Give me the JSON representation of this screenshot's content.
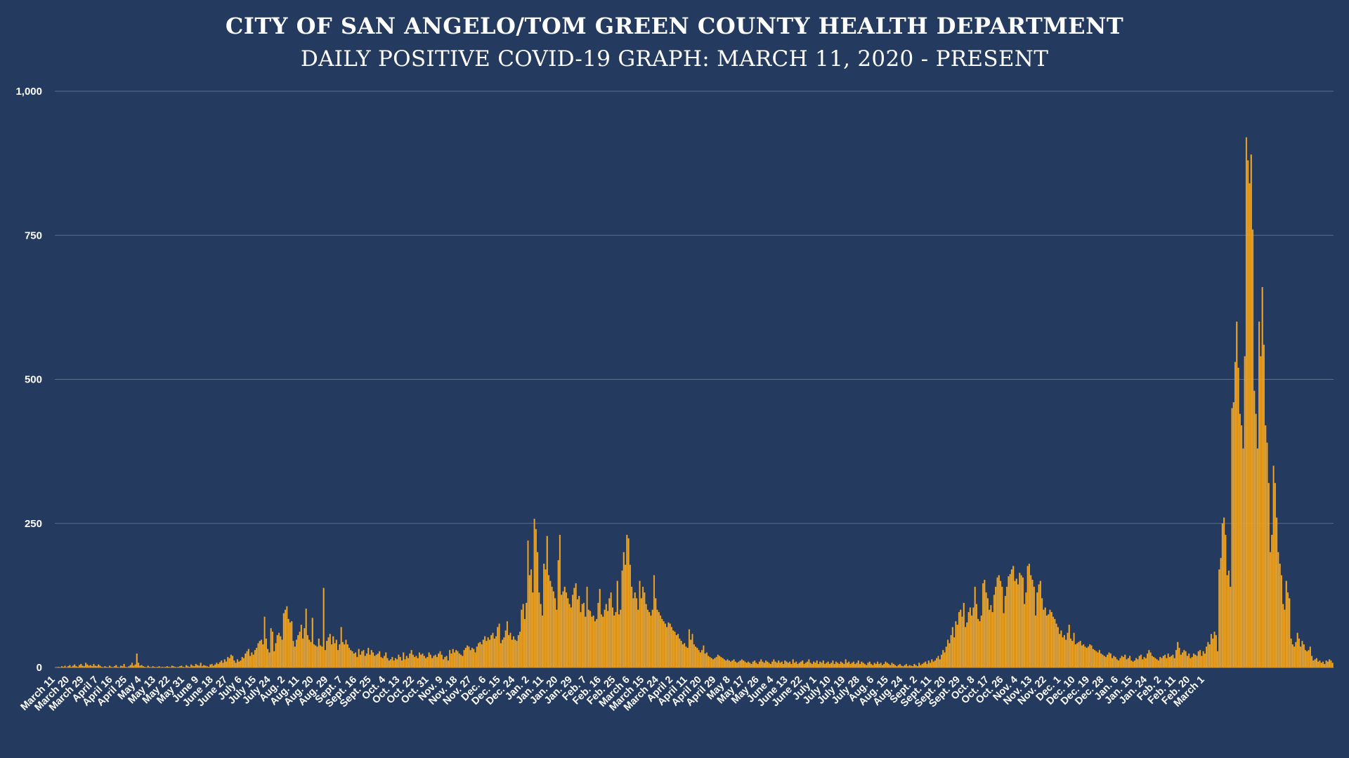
{
  "colors": {
    "background": "#243a5e",
    "bar": "#f2a82a",
    "bar_stroke": "#d6901c",
    "grid": "#5a6e8e",
    "text": "#ffffff"
  },
  "chart_data": {
    "type": "bar",
    "title": "CITY OF SAN ANGELO/TOM GREEN COUNTY HEALTH DEPARTMENT",
    "subtitle": "DAILY POSITIVE COVID-19 GRAPH: MARCH 11, 2020 - PRESENT",
    "xlabel": "",
    "ylabel": "",
    "ylim": [
      0,
      1000
    ],
    "yticks": [
      0,
      250,
      500,
      750,
      1000
    ],
    "ytick_labels": [
      "0",
      "250",
      "500",
      "750",
      "1,000"
    ],
    "grid": true,
    "xtick_labels": [
      "March 11",
      "March 20",
      "March 29",
      "April 7",
      "April 16",
      "April 25",
      "May 4",
      "May 13",
      "May 22",
      "May 31",
      "June 9",
      "June 18",
      "June 27",
      "July 6",
      "July 15",
      "July 24",
      "Aug. 2",
      "Aug. 11",
      "Aug. 20",
      "Aug. 29",
      "Sept. 7",
      "Sept. 16",
      "Sept. 25",
      "Oct. 4",
      "Oct. 13",
      "Oct. 22",
      "Oct. 31",
      "Nov. 9",
      "Nov. 18",
      "Nov. 27",
      "Dec. 6",
      "Dec. 15",
      "Dec. 24",
      "Jan. 2",
      "Jan. 11",
      "Jan. 20",
      "Jan. 29",
      "Feb. 7",
      "Feb. 16",
      "Feb. 25",
      "March 6",
      "March 15",
      "March 24",
      "April 2",
      "April 11",
      "April 20",
      "April 29",
      "May 8",
      "May 17",
      "May 26",
      "June 4",
      "June 13",
      "June 22",
      "July 1",
      "July 10",
      "July 19",
      "July 28",
      "Aug. 6",
      "Aug. 15",
      "Aug. 24",
      "Sept. 2",
      "Sept. 11",
      "Sept. 20",
      "Sept. 29",
      "Oct. 8",
      "Oct. 17",
      "Oct. 26",
      "Nov. 4",
      "Nov. 13",
      "Nov. 22",
      "Dec. 1",
      "Dec. 10",
      "Dec. 19",
      "Dec. 28",
      "Jan. 6",
      "Jan. 15",
      "Jan. 24",
      "Feb. 2",
      "Feb. 11",
      "Feb. 20",
      "March 1"
    ],
    "series": [
      {
        "values": [
          0,
          0,
          1,
          0,
          2,
          1,
          3,
          0,
          2,
          4,
          1,
          3,
          5,
          2,
          1,
          4,
          6,
          3,
          2,
          8,
          5,
          3,
          4,
          2,
          6,
          3,
          2,
          5,
          3,
          1,
          0,
          2,
          1,
          0,
          3,
          1,
          0,
          2,
          4,
          1,
          0,
          3,
          2,
          6,
          1,
          0,
          2,
          4,
          8,
          3,
          5,
          24,
          8,
          3,
          4,
          2,
          1,
          0,
          3,
          1,
          0,
          2,
          1,
          0,
          1,
          2,
          0,
          1,
          0,
          1,
          2,
          1,
          0,
          3,
          2,
          1,
          0,
          1,
          2,
          3,
          1,
          0,
          4,
          2,
          1,
          5,
          3,
          2,
          6,
          4,
          3,
          8,
          2,
          4,
          3,
          2,
          1,
          5,
          6,
          3,
          5,
          8,
          6,
          9,
          12,
          8,
          14,
          10,
          18,
          16,
          22,
          20,
          12,
          8,
          14,
          10,
          12,
          18,
          16,
          24,
          28,
          32,
          20,
          26,
          22,
          30,
          34,
          42,
          46,
          48,
          40,
          88,
          50,
          32,
          26,
          68,
          62,
          28,
          42,
          56,
          60,
          54,
          48,
          94,
          100,
          106,
          84,
          78,
          80,
          46,
          36,
          48,
          56,
          62,
          74,
          50,
          68,
          102,
          56,
          48,
          44,
          86,
          40,
          38,
          36,
          50,
          38,
          36,
          138,
          30,
          46,
          52,
          58,
          40,
          54,
          42,
          48,
          30,
          40,
          70,
          44,
          40,
          48,
          40,
          34,
          30,
          28,
          24,
          26,
          18,
          32,
          22,
          28,
          30,
          20,
          24,
          34,
          22,
          30,
          26,
          20,
          22,
          24,
          28,
          18,
          16,
          20,
          26,
          16,
          12,
          14,
          18,
          12,
          16,
          14,
          22,
          18,
          12,
          26,
          14,
          20,
          16,
          24,
          30,
          22,
          18,
          20,
          16,
          26,
          22,
          24,
          20,
          16,
          18,
          26,
          22,
          16,
          20,
          22,
          18,
          24,
          28,
          22,
          14,
          18,
          20,
          12,
          30,
          24,
          32,
          26,
          30,
          28,
          24,
          22,
          20,
          30,
          34,
          38,
          36,
          30,
          34,
          32,
          26,
          36,
          42,
          44,
          40,
          48,
          54,
          46,
          52,
          48,
          56,
          60,
          50,
          54,
          70,
          76,
          42,
          48,
          52,
          64,
          80,
          56,
          60,
          48,
          54,
          48,
          46,
          56,
          62,
          100,
          110,
          84,
          112,
          220,
          160,
          170,
          130,
          258,
          240,
          200,
          130,
          110,
          90,
          180,
          170,
          228,
          160,
          150,
          140,
          132,
          120,
          100,
          186,
          230,
          126,
          132,
          140,
          130,
          120,
          110,
          104,
          126,
          138,
          146,
          118,
          124,
          96,
          110,
          112,
          88,
          140,
          100,
          98,
          88,
          90,
          80,
          84,
          112,
          136,
          92,
          88,
          100,
          110,
          98,
          120,
          130,
          104,
          90,
          96,
          150,
          92,
          100,
          168,
          200,
          178,
          230,
          224,
          178,
          140,
          120,
          130,
          120,
          100,
          150,
          120,
          140,
          130,
          110,
          100,
          96,
          90,
          100,
          160,
          120,
          100,
          96,
          90,
          84,
          80,
          76,
          70,
          78,
          76,
          70,
          64,
          62,
          56,
          58,
          50,
          46,
          40,
          42,
          36,
          34,
          66,
          48,
          58,
          40,
          36,
          34,
          30,
          26,
          30,
          38,
          24,
          26,
          20,
          18,
          16,
          14,
          16,
          18,
          22,
          20,
          18,
          16,
          14,
          12,
          14,
          12,
          10,
          12,
          14,
          10,
          8,
          10,
          12,
          14,
          12,
          10,
          8,
          10,
          8,
          6,
          10,
          12,
          8,
          6,
          10,
          14,
          10,
          8,
          12,
          10,
          8,
          6,
          10,
          14,
          10,
          8,
          12,
          8,
          10,
          6,
          12,
          10,
          8,
          10,
          6,
          14,
          8,
          10,
          6,
          8,
          10,
          12,
          6,
          8,
          10,
          14,
          8,
          6,
          10,
          8,
          12,
          6,
          10,
          8,
          12,
          6,
          8,
          10,
          6,
          8,
          12,
          6,
          10,
          8,
          6,
          10,
          8,
          6,
          14,
          8,
          10,
          6,
          8,
          10,
          6,
          8,
          12,
          6,
          10,
          8,
          6,
          4,
          8,
          10,
          6,
          4,
          8,
          6,
          10,
          6,
          8,
          4,
          6,
          10,
          8,
          6,
          4,
          8,
          6,
          4,
          2,
          4,
          6,
          3,
          2,
          4,
          6,
          2,
          4,
          3,
          2,
          6,
          4,
          2,
          8,
          4,
          6,
          8,
          10,
          6,
          12,
          8,
          14,
          10,
          12,
          16,
          20,
          14,
          22,
          30,
          26,
          36,
          48,
          42,
          56,
          70,
          52,
          80,
          74,
          96,
          100,
          88,
          112,
          70,
          78,
          96,
          104,
          90,
          104,
          140,
          110,
          84,
          80,
          90,
          146,
          152,
          130,
          120,
          100,
          108,
          96,
          126,
          140,
          156,
          160,
          150,
          140,
          94,
          124,
          140,
          158,
          162,
          170,
          176,
          150,
          154,
          144,
          164,
          160,
          156,
          110,
          130,
          176,
          180,
          160,
          152,
          140,
          90,
          130,
          144,
          150,
          120,
          100,
          104,
          90,
          92,
          100,
          96,
          88,
          84,
          76,
          70,
          58,
          64,
          52,
          56,
          48,
          60,
          74,
          50,
          46,
          60,
          40,
          42,
          44,
          46,
          38,
          40,
          36,
          34,
          36,
          40,
          38,
          32,
          30,
          28,
          26,
          30,
          24,
          22,
          20,
          18,
          22,
          26,
          24,
          16,
          20,
          18,
          14,
          12,
          16,
          20,
          18,
          22,
          14,
          16,
          20,
          12,
          10,
          12,
          16,
          14,
          20,
          22,
          14,
          18,
          16,
          24,
          30,
          26,
          20,
          18,
          16,
          14,
          12,
          18,
          16,
          20,
          22,
          16,
          24,
          18,
          20,
          22,
          16,
          30,
          44,
          34,
          22,
          26,
          30,
          28,
          20,
          24,
          16,
          18,
          24,
          22,
          20,
          28,
          30,
          20,
          28,
          24,
          36,
          44,
          40,
          58,
          50,
          62,
          56,
          28,
          170,
          190,
          250,
          260,
          230,
          160,
          168,
          140,
          450,
          460,
          530,
          600,
          520,
          440,
          420,
          380,
          540,
          920,
          880,
          840,
          890,
          760,
          480,
          440,
          380,
          600,
          540,
          660,
          560,
          420,
          390,
          320,
          200,
          230,
          350,
          320,
          260,
          200,
          180,
          160,
          110,
          100,
          150,
          130,
          120,
          50,
          40,
          36,
          44,
          60,
          50,
          36,
          46,
          40,
          30,
          28,
          30,
          36,
          20,
          12,
          14,
          16,
          10,
          12,
          8,
          10,
          6,
          12,
          10,
          14,
          12,
          8
        ]
      }
    ]
  }
}
